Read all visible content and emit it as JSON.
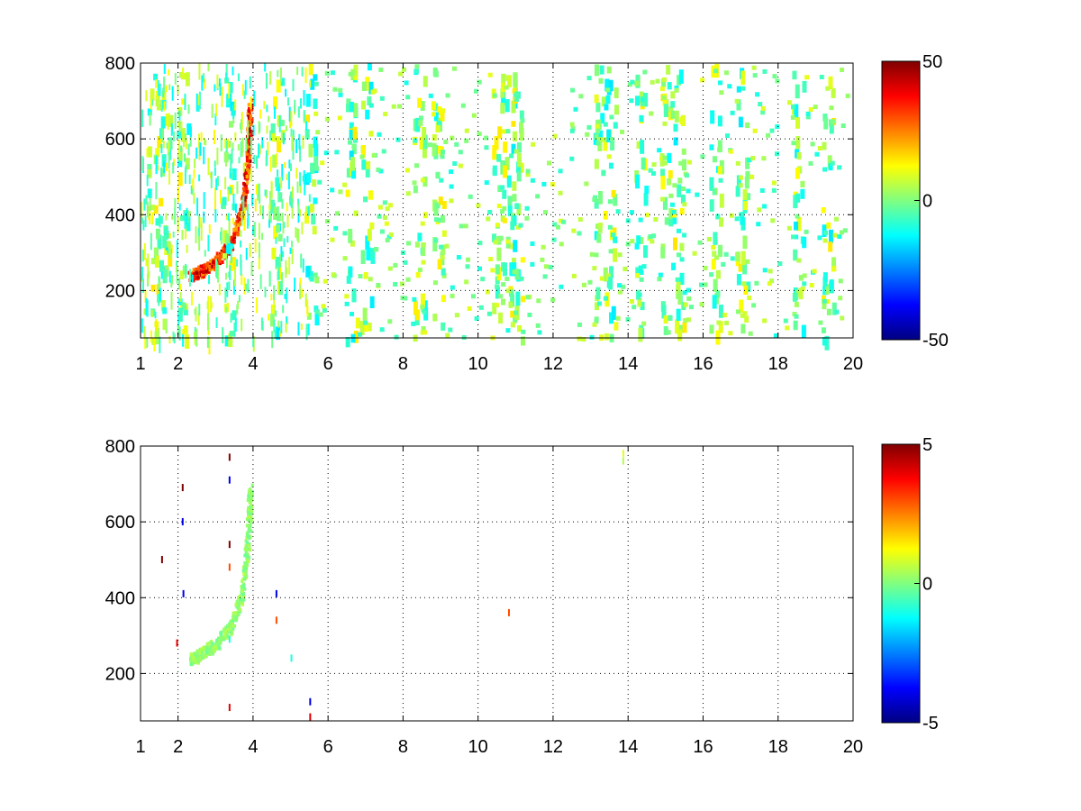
{
  "chart_data": [
    {
      "type": "heatmap",
      "panel": "top",
      "title": "",
      "xlabel": "",
      "ylabel": "",
      "xlim": [
        1,
        20
      ],
      "ylim": [
        75,
        800
      ],
      "x_ticks": [
        1,
        2,
        4,
        6,
        8,
        10,
        12,
        14,
        16,
        18,
        20
      ],
      "y_ticks": [
        200,
        400,
        600,
        800
      ],
      "grid": true,
      "colormap": "jet",
      "colorbar": {
        "min": -50,
        "max": 50,
        "ticks": [
          50,
          0,
          -50
        ]
      },
      "features": {
        "ridge": {
          "description_points_x": [
            2.3,
            2.6,
            3.0,
            3.4,
            3.7,
            3.85,
            3.9
          ],
          "description_points_y": [
            240,
            255,
            280,
            330,
            420,
            560,
            700
          ],
          "value": 45
        },
        "vertical_streaks_x": [
          1.3,
          1.6,
          2.1,
          3.3,
          4.6,
          5.5,
          6.6,
          7.0,
          8.4,
          8.9,
          10.5,
          10.8,
          11.0,
          13.2,
          13.5,
          14.3,
          15.0,
          15.3,
          16.3,
          17.0,
          18.5,
          19.3
        ],
        "scatter_value_range": [
          -15,
          15
        ]
      }
    },
    {
      "type": "heatmap",
      "panel": "bottom",
      "title": "",
      "xlabel": "",
      "ylabel": "",
      "xlim": [
        1,
        20
      ],
      "ylim": [
        75,
        800
      ],
      "x_ticks": [
        1,
        2,
        4,
        6,
        8,
        10,
        12,
        14,
        16,
        18,
        20
      ],
      "y_ticks": [
        200,
        400,
        600,
        800
      ],
      "grid": true,
      "colormap": "jet",
      "colorbar": {
        "min": -5,
        "max": 5,
        "ticks": [
          5,
          0,
          -5
        ]
      },
      "features": {
        "ridge": {
          "description_points_x": [
            2.3,
            2.6,
            3.0,
            3.4,
            3.7,
            3.85,
            3.9
          ],
          "description_points_y": [
            240,
            255,
            280,
            330,
            420,
            560,
            700
          ],
          "value": 0.3
        },
        "sparse_points": [
          {
            "x": 1.55,
            "y": 510,
            "v": 5
          },
          {
            "x": 1.95,
            "y": 290,
            "v": 4
          },
          {
            "x": 2.1,
            "y": 700,
            "v": 5
          },
          {
            "x": 2.1,
            "y": 610,
            "v": -4
          },
          {
            "x": 2.12,
            "y": 420,
            "v": -4
          },
          {
            "x": 3.35,
            "y": 780,
            "v": 5
          },
          {
            "x": 3.35,
            "y": 720,
            "v": -4
          },
          {
            "x": 3.35,
            "y": 550,
            "v": 5
          },
          {
            "x": 3.35,
            "y": 490,
            "v": 3
          },
          {
            "x": 3.35,
            "y": 300,
            "v": -1
          },
          {
            "x": 3.35,
            "y": 120,
            "v": 4
          },
          {
            "x": 4.6,
            "y": 420,
            "v": -4
          },
          {
            "x": 4.6,
            "y": 350,
            "v": 3
          },
          {
            "x": 5.0,
            "y": 250,
            "v": -1
          },
          {
            "x": 5.5,
            "y": 135,
            "v": -4
          },
          {
            "x": 5.5,
            "y": 95,
            "v": 4
          },
          {
            "x": 10.8,
            "y": 370,
            "v": 3
          },
          {
            "x": 13.85,
            "y": 790,
            "v": 1
          },
          {
            "x": 13.85,
            "y": 770,
            "v": 0.5
          }
        ]
      }
    }
  ]
}
